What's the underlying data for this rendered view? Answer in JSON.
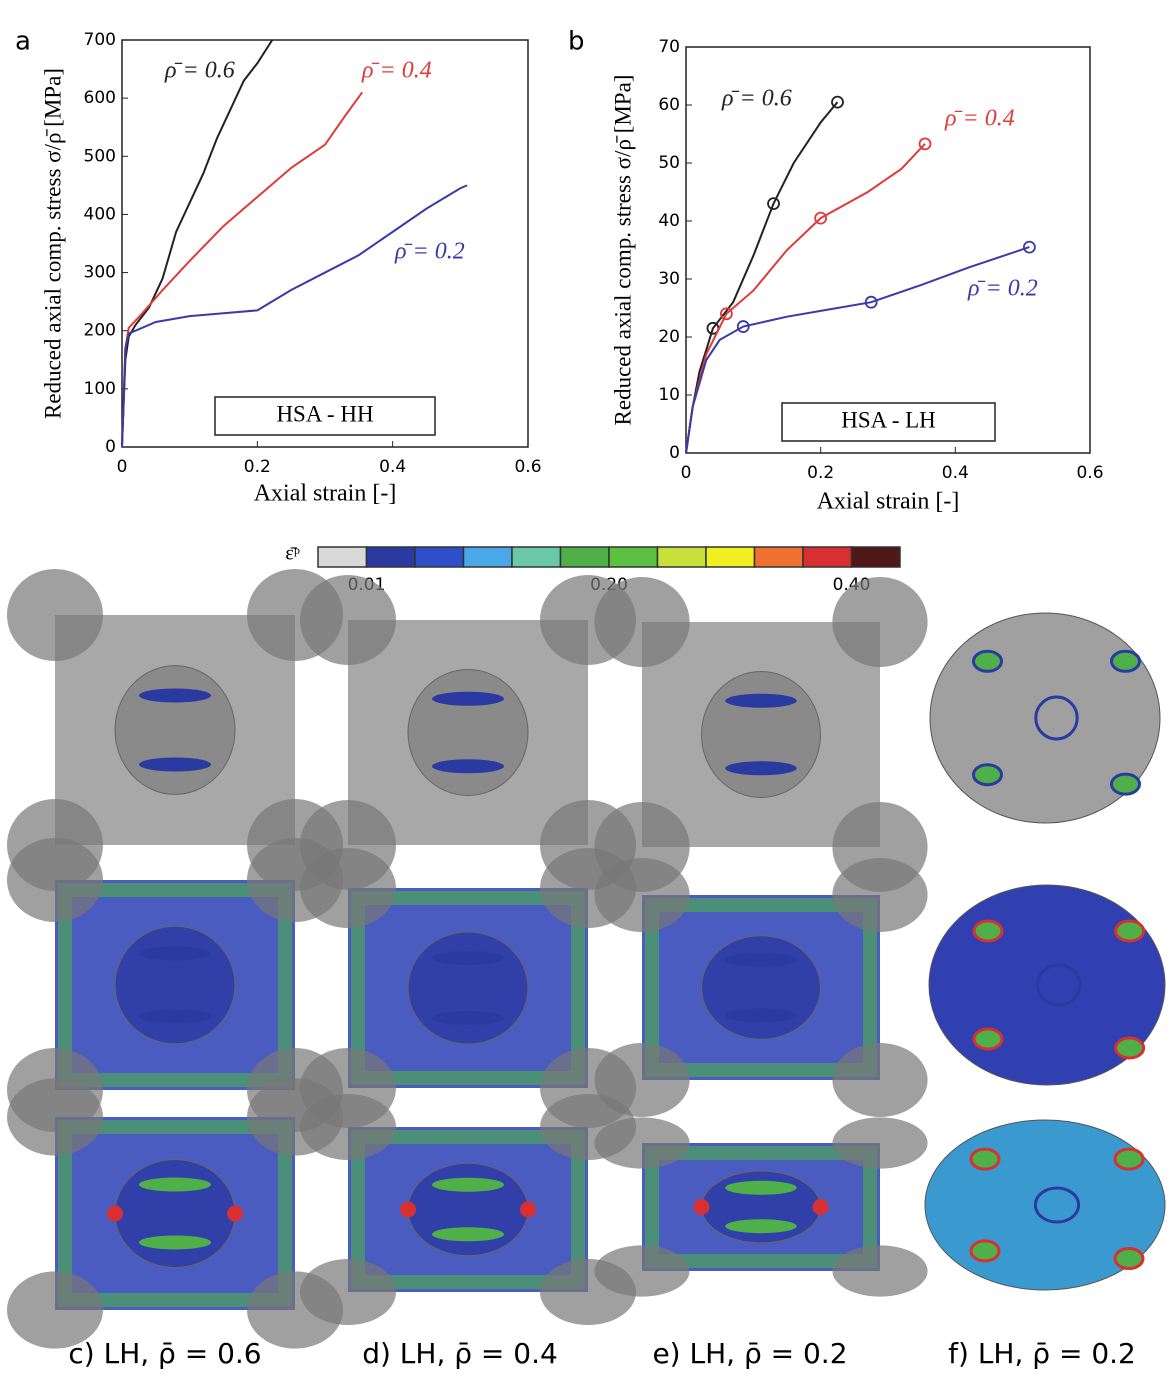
{
  "chart_data": [
    {
      "type": "line",
      "panel": "a",
      "xlabel": "Axial strain [-]",
      "ylabel": "Reduced axial comp. stress σ/ρ̄ [MPa]",
      "box_label": "HSA - HH",
      "xlim": [
        0,
        0.6
      ],
      "ylim": [
        0,
        700
      ],
      "xticks": [
        0,
        0.2,
        0.4,
        0.6
      ],
      "yticks": [
        0,
        100,
        200,
        300,
        400,
        500,
        600,
        700
      ],
      "series": [
        {
          "name": "ρ̄ = 0.6",
          "color": "#222222",
          "x": [
            0,
            0.005,
            0.01,
            0.02,
            0.04,
            0.06,
            0.08,
            0.1,
            0.12,
            0.14,
            0.16,
            0.18,
            0.2,
            0.222
          ],
          "values": [
            0,
            150,
            190,
            210,
            240,
            290,
            370,
            420,
            470,
            530,
            580,
            630,
            660,
            700
          ]
        },
        {
          "name": "ρ̄ = 0.4",
          "color": "#e03a3a",
          "x": [
            0,
            0.005,
            0.01,
            0.03,
            0.06,
            0.1,
            0.15,
            0.2,
            0.25,
            0.3,
            0.33,
            0.355
          ],
          "values": [
            0,
            170,
            205,
            230,
            270,
            320,
            380,
            430,
            480,
            520,
            570,
            610
          ]
        },
        {
          "name": "ρ̄ = 0.2",
          "color": "#3a3aa8",
          "x": [
            0,
            0.005,
            0.01,
            0.05,
            0.1,
            0.15,
            0.2,
            0.25,
            0.3,
            0.35,
            0.4,
            0.45,
            0.5,
            0.51
          ],
          "values": [
            0,
            170,
            195,
            215,
            225,
            230,
            235,
            270,
            300,
            330,
            370,
            410,
            445,
            450
          ]
        }
      ]
    },
    {
      "type": "line",
      "panel": "b",
      "xlabel": "Axial strain [-]",
      "ylabel": "Reduced axial comp. stress σ/ρ̄ [MPa]",
      "box_label": "HSA - LH",
      "xlim": [
        0,
        0.6
      ],
      "ylim": [
        0,
        70
      ],
      "xticks": [
        0,
        0.2,
        0.4,
        0.6
      ],
      "yticks": [
        0,
        10,
        20,
        30,
        40,
        50,
        60,
        70
      ],
      "series": [
        {
          "name": "ρ̄ = 0.6",
          "color": "#222222",
          "x": [
            0,
            0.01,
            0.02,
            0.04,
            0.07,
            0.1,
            0.13,
            0.16,
            0.2,
            0.225
          ],
          "values": [
            0,
            8,
            14,
            21.5,
            26,
            34,
            43,
            50,
            57,
            60.5
          ],
          "markers": [
            3,
            6,
            9
          ]
        },
        {
          "name": "ρ̄ = 0.4",
          "color": "#e03a3a",
          "x": [
            0,
            0.01,
            0.03,
            0.06,
            0.1,
            0.15,
            0.2,
            0.27,
            0.32,
            0.355
          ],
          "values": [
            0,
            8,
            17,
            24,
            28,
            35,
            40.5,
            45,
            49,
            53.3
          ],
          "markers": [
            3,
            6,
            9
          ]
        },
        {
          "name": "ρ̄ = 0.2",
          "color": "#3a3aa8",
          "x": [
            0,
            0.01,
            0.03,
            0.05,
            0.085,
            0.15,
            0.2,
            0.275,
            0.35,
            0.42,
            0.51
          ],
          "values": [
            0,
            8,
            16,
            19.5,
            21.8,
            23.5,
            24.5,
            26,
            29,
            32,
            35.5
          ],
          "markers": [
            4,
            7,
            10
          ]
        }
      ]
    }
  ],
  "colorbar": {
    "label": "ε̄ᵖ",
    "colors": [
      "#d9d9d9",
      "#2b3aa0",
      "#2f4fc8",
      "#4aa8e8",
      "#6ac8a8",
      "#4fb04a",
      "#5cc040",
      "#c8e03a",
      "#f0f020",
      "#f07030",
      "#d83030",
      "#501818"
    ],
    "tick_labels": [
      "0.01",
      "0.20",
      "0.40"
    ]
  },
  "captions": [
    "c) LH, ρ̄ = 0.6",
    "d) LH, ρ̄ = 0.4",
    "e) LH, ρ̄ = 0.2",
    "f) LH, ρ̄ = 0.2"
  ]
}
